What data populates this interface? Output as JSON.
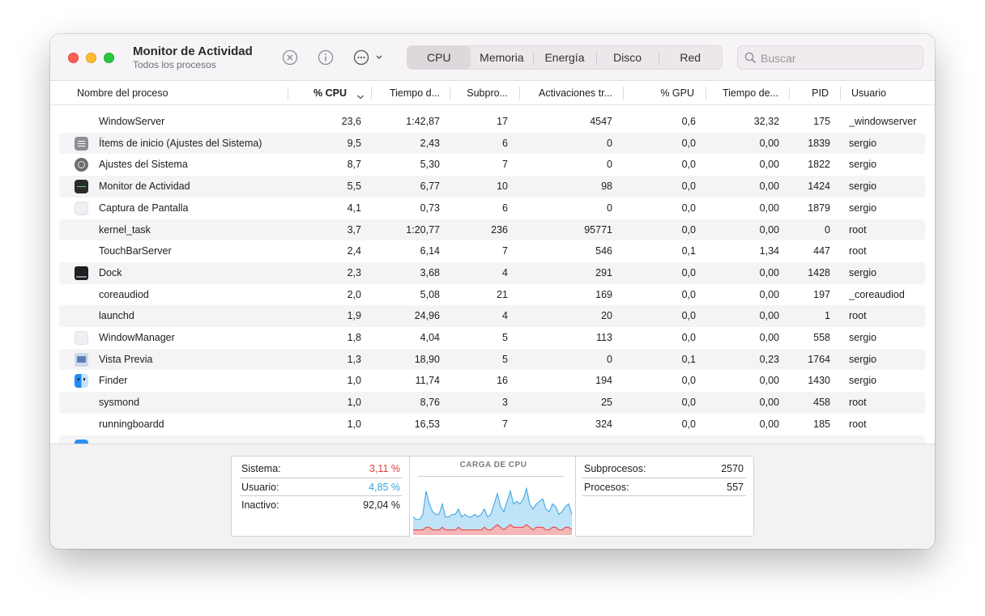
{
  "app": {
    "title": "Monitor de Actividad",
    "subtitle": "Todos los procesos"
  },
  "tabs": [
    {
      "label": "CPU",
      "active": true
    },
    {
      "label": "Memoria",
      "active": false
    },
    {
      "label": "Energía",
      "active": false
    },
    {
      "label": "Disco",
      "active": false
    },
    {
      "label": "Red",
      "active": false
    }
  ],
  "search": {
    "placeholder": "Buscar",
    "value": ""
  },
  "columns": {
    "name": "Nombre del proceso",
    "cpu": "% CPU",
    "cpu_time": "Tiempo d...",
    "threads": "Subpro...",
    "wakeups": "Activaciones tr...",
    "gpu": "% GPU",
    "gpu_time": "Tiempo de...",
    "pid": "PID",
    "user": "Usuario"
  },
  "processes": [
    {
      "icon": "none",
      "name": "WindowServer",
      "cpu": "23,6",
      "cpu_time": "1:42,87",
      "threads": "17",
      "wakeups": "4547",
      "gpu": "0,6",
      "gpu_time": "32,32",
      "pid": "175",
      "user": "_windowserver"
    },
    {
      "icon": "login-items-icon",
      "name": "Ítems de inicio (Ajustes del Sistema)",
      "cpu": "9,5",
      "cpu_time": "2,43",
      "threads": "6",
      "wakeups": "0",
      "gpu": "0,0",
      "gpu_time": "0,00",
      "pid": "1839",
      "user": "sergio"
    },
    {
      "icon": "system-settings-icon",
      "name": "Ajustes del Sistema",
      "cpu": "8,7",
      "cpu_time": "5,30",
      "threads": "7",
      "wakeups": "0",
      "gpu": "0,0",
      "gpu_time": "0,00",
      "pid": "1822",
      "user": "sergio"
    },
    {
      "icon": "activity-monitor-icon",
      "name": "Monitor de Actividad",
      "cpu": "5,5",
      "cpu_time": "6,77",
      "threads": "10",
      "wakeups": "98",
      "gpu": "0,0",
      "gpu_time": "0,00",
      "pid": "1424",
      "user": "sergio"
    },
    {
      "icon": "generic-app-icon",
      "name": "Captura de Pantalla",
      "cpu": "4,1",
      "cpu_time": "0,73",
      "threads": "6",
      "wakeups": "0",
      "gpu": "0,0",
      "gpu_time": "0,00",
      "pid": "1879",
      "user": "sergio"
    },
    {
      "icon": "none",
      "name": "kernel_task",
      "cpu": "3,7",
      "cpu_time": "1:20,77",
      "threads": "236",
      "wakeups": "95771",
      "gpu": "0,0",
      "gpu_time": "0,00",
      "pid": "0",
      "user": "root"
    },
    {
      "icon": "none",
      "name": "TouchBarServer",
      "cpu": "2,4",
      "cpu_time": "6,14",
      "threads": "7",
      "wakeups": "546",
      "gpu": "0,1",
      "gpu_time": "1,34",
      "pid": "447",
      "user": "root"
    },
    {
      "icon": "dock-icon",
      "name": "Dock",
      "cpu": "2,3",
      "cpu_time": "3,68",
      "threads": "4",
      "wakeups": "291",
      "gpu": "0,0",
      "gpu_time": "0,00",
      "pid": "1428",
      "user": "sergio"
    },
    {
      "icon": "none",
      "name": "coreaudiod",
      "cpu": "2,0",
      "cpu_time": "5,08",
      "threads": "21",
      "wakeups": "169",
      "gpu": "0,0",
      "gpu_time": "0,00",
      "pid": "197",
      "user": "_coreaudiod"
    },
    {
      "icon": "none",
      "name": "launchd",
      "cpu": "1,9",
      "cpu_time": "24,96",
      "threads": "4",
      "wakeups": "20",
      "gpu": "0,0",
      "gpu_time": "0,00",
      "pid": "1",
      "user": "root"
    },
    {
      "icon": "generic-app-icon",
      "name": "WindowManager",
      "cpu": "1,8",
      "cpu_time": "4,04",
      "threads": "5",
      "wakeups": "113",
      "gpu": "0,0",
      "gpu_time": "0,00",
      "pid": "558",
      "user": "sergio"
    },
    {
      "icon": "preview-icon",
      "name": "Vista Previa",
      "cpu": "1,3",
      "cpu_time": "18,90",
      "threads": "5",
      "wakeups": "0",
      "gpu": "0,1",
      "gpu_time": "0,23",
      "pid": "1764",
      "user": "sergio"
    },
    {
      "icon": "finder-icon",
      "name": "Finder",
      "cpu": "1,0",
      "cpu_time": "11,74",
      "threads": "16",
      "wakeups": "194",
      "gpu": "0,0",
      "gpu_time": "0,00",
      "pid": "1430",
      "user": "sergio"
    },
    {
      "icon": "none",
      "name": "sysmond",
      "cpu": "1,0",
      "cpu_time": "8,76",
      "threads": "3",
      "wakeups": "25",
      "gpu": "0,0",
      "gpu_time": "0,00",
      "pid": "458",
      "user": "root"
    },
    {
      "icon": "none",
      "name": "runningboardd",
      "cpu": "1,0",
      "cpu_time": "16,53",
      "threads": "7",
      "wakeups": "324",
      "gpu": "0,0",
      "gpu_time": "0,00",
      "pid": "185",
      "user": "root"
    }
  ],
  "summary": {
    "system_label": "Sistema:",
    "system_value": "3,11 %",
    "user_label": "Usuario:",
    "user_value": "4,85 %",
    "idle_label": "Inactivo:",
    "idle_value": "92,04 %",
    "graph_title": "CARGA DE CPU",
    "threads_label": "Subprocesos:",
    "threads_value": "2570",
    "processes_label": "Procesos:",
    "processes_value": "557"
  },
  "colors": {
    "system": "#e63c3c",
    "user": "#34a3e0",
    "user_fill": "#bfe3f7"
  },
  "cpu_load_history": {
    "user": [
      5,
      4,
      4,
      6,
      14,
      9,
      7,
      6,
      6,
      9,
      5,
      5,
      6,
      6,
      7,
      5,
      6,
      5,
      5,
      6,
      5,
      6,
      7,
      5,
      6,
      9,
      12,
      8,
      7,
      10,
      13,
      9,
      10,
      9,
      11,
      14,
      9,
      8,
      9,
      10,
      11,
      8,
      7,
      9,
      8,
      6,
      7,
      8,
      9,
      6
    ],
    "system": [
      2,
      2,
      2,
      2,
      3,
      3,
      2,
      2,
      2,
      3,
      2,
      2,
      2,
      2,
      3,
      2,
      2,
      2,
      2,
      2,
      2,
      2,
      3,
      2,
      2,
      3,
      4,
      3,
      2,
      3,
      4,
      3,
      3,
      3,
      3,
      4,
      3,
      2,
      3,
      3,
      3,
      2,
      2,
      3,
      3,
      2,
      2,
      3,
      3,
      2
    ]
  }
}
